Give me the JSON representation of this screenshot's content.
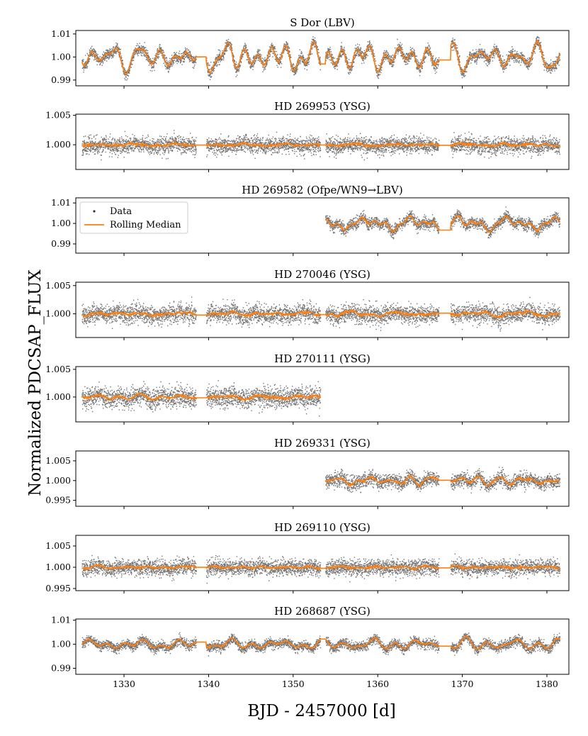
{
  "chart_data": {
    "type": "scatter",
    "xlabel": "BJD - 2457000 [d]",
    "ylabel": "Normalized PDCSAP_FLUX",
    "xlim": [
      1324.3,
      1382.6
    ],
    "xticks": [
      1330,
      1340,
      1350,
      1360,
      1370,
      1380
    ],
    "xtick_labels": [
      "1330",
      "1340",
      "1350",
      "1360",
      "1370",
      "1380"
    ],
    "legend": {
      "location": "upper-left of panel 3",
      "entries": [
        "Data",
        "Rolling Median"
      ]
    },
    "colors": {
      "data": "#000000",
      "median": "#ff7f0e"
    },
    "panels": [
      {
        "title": "S Dor (LBV)",
        "ylim": [
          0.9875,
          1.0115
        ],
        "yticks": [
          0.99,
          1.0,
          1.01
        ],
        "ytick_labels": [
          "0.99",
          "1.00",
          "1.01"
        ],
        "segments": [
          [
            1325.0,
            1338.5
          ],
          [
            1339.7,
            1353.2
          ],
          [
            1353.8,
            1367.2
          ],
          [
            1368.6,
            1381.5
          ]
        ],
        "variability_amplitude": 0.006,
        "scatter": 0.0012,
        "seed": 11
      },
      {
        "title": "HD 269953 (YSG)",
        "ylim": [
          0.9958,
          1.0052
        ],
        "yticks": [
          1.0,
          1.005
        ],
        "ytick_labels": [
          "1.000",
          "1.005"
        ],
        "segments": [
          [
            1325.0,
            1338.5
          ],
          [
            1339.7,
            1353.2
          ],
          [
            1353.8,
            1367.2
          ],
          [
            1368.6,
            1381.5
          ]
        ],
        "variability_amplitude": 0.0003,
        "scatter": 0.0007,
        "seed": 23
      },
      {
        "title": "HD 269582 (Ofpe/WN9→LBV)",
        "ylim": [
          0.9855,
          1.0125
        ],
        "yticks": [
          0.99,
          1.0,
          1.01
        ],
        "ytick_labels": [
          "0.99",
          "1.00",
          "1.01"
        ],
        "segments": [
          [
            1353.8,
            1367.2
          ],
          [
            1368.6,
            1381.5
          ]
        ],
        "variability_amplitude": 0.004,
        "scatter": 0.0014,
        "seed": 37
      },
      {
        "title": "HD 270046 (YSG)",
        "ylim": [
          0.9958,
          1.0056
        ],
        "yticks": [
          1.0,
          1.005
        ],
        "ytick_labels": [
          "1.000",
          "1.005"
        ],
        "segments": [
          [
            1325.0,
            1338.5
          ],
          [
            1339.7,
            1353.2
          ],
          [
            1353.8,
            1367.2
          ],
          [
            1368.6,
            1381.5
          ]
        ],
        "variability_amplitude": 0.0004,
        "scatter": 0.0008,
        "seed": 41
      },
      {
        "title": "HD 270111 (YSG)",
        "ylim": [
          0.9955,
          1.0055
        ],
        "yticks": [
          1.0,
          1.005
        ],
        "ytick_labels": [
          "1.000",
          "1.005"
        ],
        "segments": [
          [
            1325.0,
            1338.5
          ],
          [
            1339.7,
            1353.2
          ]
        ],
        "variability_amplitude": 0.0004,
        "scatter": 0.0009,
        "seed": 53
      },
      {
        "title": "HD 269331 (YSG)",
        "ylim": [
          0.9935,
          1.0075
        ],
        "yticks": [
          0.995,
          1.0,
          1.005
        ],
        "ytick_labels": [
          "0.995",
          "1.000",
          "1.005"
        ],
        "segments": [
          [
            1353.8,
            1367.2
          ],
          [
            1368.6,
            1381.5
          ]
        ],
        "variability_amplitude": 0.0012,
        "scatter": 0.0009,
        "seed": 67
      },
      {
        "title": "HD 269110 (YSG)",
        "ylim": [
          0.9945,
          1.0075
        ],
        "yticks": [
          0.995,
          1.0,
          1.005
        ],
        "ytick_labels": [
          "0.995",
          "1.000",
          "1.005"
        ],
        "segments": [
          [
            1325.0,
            1338.5
          ],
          [
            1339.7,
            1353.2
          ],
          [
            1353.8,
            1367.2
          ],
          [
            1368.6,
            1381.5
          ]
        ],
        "variability_amplitude": 0.0003,
        "scatter": 0.0009,
        "seed": 79
      },
      {
        "title": "HD 268687 (YSG)",
        "ylim": [
          0.9875,
          1.0105
        ],
        "yticks": [
          0.99,
          1.0,
          1.01
        ],
        "ytick_labels": [
          "0.99",
          "1.00",
          "1.01"
        ],
        "segments": [
          [
            1325.0,
            1338.5
          ],
          [
            1339.7,
            1353.2
          ],
          [
            1353.8,
            1367.2
          ],
          [
            1368.6,
            1381.5
          ]
        ],
        "variability_amplitude": 0.0025,
        "scatter": 0.001,
        "seed": 97
      }
    ]
  }
}
